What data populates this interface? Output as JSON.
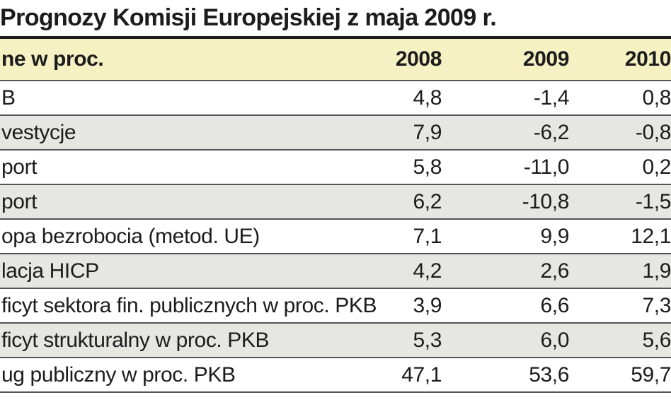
{
  "title": "Prognozy Komisji Europejskiej z maja 2009 r.",
  "chart_data": {
    "type": "table",
    "title": "Prognozy Komisji Europejskiej z maja 2009 r.",
    "columns": [
      "ne w proc.",
      "2008",
      "2009",
      "2010"
    ],
    "rows": [
      {
        "label": "B",
        "values": [
          "4,8",
          "-1,4",
          "0,8"
        ]
      },
      {
        "label": "vestycje",
        "values": [
          "7,9",
          "-6,2",
          "-0,8"
        ]
      },
      {
        "label": "port",
        "values": [
          "5,8",
          "-11,0",
          "0,2"
        ]
      },
      {
        "label": "port",
        "values": [
          "6,2",
          "-10,8",
          "-1,5"
        ]
      },
      {
        "label": "opa bezrobocia (metod. UE)",
        "values": [
          "7,1",
          "9,9",
          "12,1"
        ]
      },
      {
        "label": "lacja HICP",
        "values": [
          "4,2",
          "2,6",
          "1,9"
        ]
      },
      {
        "label": "ficyt sektora fin. publicznych w proc. PKB",
        "values": [
          "3,9",
          "6,6",
          "7,3"
        ]
      },
      {
        "label": "ficyt strukturalny w proc. PKB",
        "values": [
          "5,3",
          "6,0",
          "5,6"
        ]
      },
      {
        "label": "ug publiczny w proc. PKB",
        "values": [
          "47,1",
          "53,6",
          "59,7"
        ]
      }
    ]
  }
}
